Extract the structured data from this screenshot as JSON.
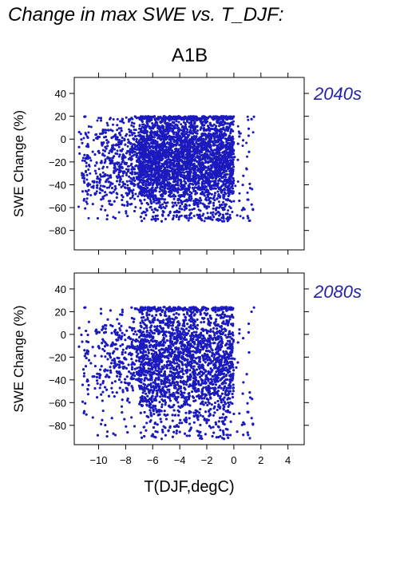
{
  "title": "Change in max SWE vs. T_DJF:",
  "scenario": "A1B",
  "point_color": "#1a1abf",
  "chart_data": [
    {
      "type": "scatter",
      "panel_label": "2040s",
      "xlabel": "T(DJF,degC)",
      "ylabel": "SWE Change (%)",
      "xlim": [
        -11.8,
        5.2
      ],
      "ylim": [
        -97,
        54
      ],
      "xticks": [
        -10,
        -8,
        -6,
        -4,
        -2,
        0,
        2,
        4
      ],
      "yticks": [
        40,
        20,
        0,
        -20,
        -40,
        -60,
        -80
      ],
      "point_cloud": {
        "approx_points": 7000,
        "x_range": [
          -11.5,
          1.5
        ],
        "y_range": [
          -72,
          24
        ],
        "dense_core": {
          "x_range": [
            -7,
            0
          ],
          "y_range": [
            -55,
            20
          ]
        },
        "cap_y": 20
      }
    },
    {
      "type": "scatter",
      "panel_label": "2080s",
      "xlabel": "T(DJF,degC)",
      "ylabel": "SWE Change (%)",
      "xlim": [
        -11.8,
        5.2
      ],
      "ylim": [
        -97,
        54
      ],
      "xticks": [
        -10,
        -8,
        -6,
        -4,
        -2,
        0,
        2,
        4
      ],
      "yticks": [
        40,
        20,
        0,
        -20,
        -40,
        -60,
        -80
      ],
      "point_cloud": {
        "approx_points": 7000,
        "x_range": [
          -11.5,
          1.5
        ],
        "y_range": [
          -92,
          28
        ],
        "dense_core": {
          "x_range": [
            -7,
            0
          ],
          "y_range": [
            -70,
            24
          ]
        },
        "cap_y": 24
      }
    }
  ]
}
